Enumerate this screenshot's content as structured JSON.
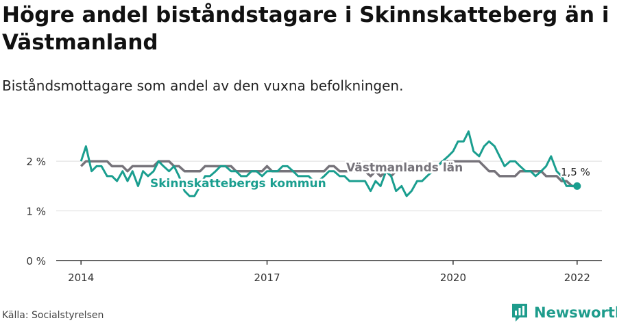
{
  "header": {
    "title": "Högre andel biståndstagare i Skinnskatteberg än i Västmanland",
    "subtitle": "Biståndsmottagare som andel av den vuxna befolkningen."
  },
  "footer": {
    "source": "Källa: Socialstyrelsen",
    "brand": "Newsworthy"
  },
  "colors": {
    "kommun": "#1a9e8f",
    "lan": "#76737a",
    "axis": "#333333",
    "grid": "#dddddd",
    "brand": "#1e9c8c"
  },
  "icons": {
    "brand_logo": "newsworthy-logo-icon"
  },
  "chart_data": {
    "type": "line",
    "title": "Högre andel biståndstagare i Skinnskatteberg än i Västmanland",
    "subtitle": "Biståndsmottagare som andel av den vuxna befolkningen.",
    "xlabel": "",
    "ylabel": "",
    "x_ticks": [
      2014,
      2017,
      2020,
      2022
    ],
    "xlim": [
      2013.6,
      2022.4
    ],
    "y_ticks": [
      0,
      1,
      2
    ],
    "y_tick_labels": [
      "0 %",
      "1 %",
      "2 %"
    ],
    "ylim": [
      0,
      2.9
    ],
    "grid": true,
    "end_label": "1,5 %",
    "series": [
      {
        "name": "Västmanlands län",
        "values": [
          [
            2014.0,
            1.9
          ],
          [
            2014.08,
            2.0
          ],
          [
            2014.17,
            2.0
          ],
          [
            2014.25,
            2.0
          ],
          [
            2014.33,
            2.0
          ],
          [
            2014.42,
            2.0
          ],
          [
            2014.5,
            1.9
          ],
          [
            2014.58,
            1.9
          ],
          [
            2014.67,
            1.9
          ],
          [
            2014.75,
            1.8
          ],
          [
            2014.83,
            1.9
          ],
          [
            2014.92,
            1.9
          ],
          [
            2015.0,
            1.9
          ],
          [
            2015.08,
            1.9
          ],
          [
            2015.17,
            1.9
          ],
          [
            2015.25,
            2.0
          ],
          [
            2015.33,
            2.0
          ],
          [
            2015.42,
            2.0
          ],
          [
            2015.5,
            1.9
          ],
          [
            2015.58,
            1.9
          ],
          [
            2015.67,
            1.8
          ],
          [
            2015.75,
            1.8
          ],
          [
            2015.83,
            1.8
          ],
          [
            2015.92,
            1.8
          ],
          [
            2016.0,
            1.9
          ],
          [
            2016.08,
            1.9
          ],
          [
            2016.17,
            1.9
          ],
          [
            2016.25,
            1.9
          ],
          [
            2016.33,
            1.9
          ],
          [
            2016.42,
            1.9
          ],
          [
            2016.5,
            1.8
          ],
          [
            2016.58,
            1.8
          ],
          [
            2016.67,
            1.8
          ],
          [
            2016.75,
            1.8
          ],
          [
            2016.83,
            1.8
          ],
          [
            2016.92,
            1.8
          ],
          [
            2017.0,
            1.9
          ],
          [
            2017.08,
            1.8
          ],
          [
            2017.17,
            1.8
          ],
          [
            2017.25,
            1.8
          ],
          [
            2017.33,
            1.8
          ],
          [
            2017.42,
            1.8
          ],
          [
            2017.5,
            1.8
          ],
          [
            2017.58,
            1.8
          ],
          [
            2017.67,
            1.8
          ],
          [
            2017.75,
            1.8
          ],
          [
            2017.83,
            1.8
          ],
          [
            2017.92,
            1.8
          ],
          [
            2018.0,
            1.9
          ],
          [
            2018.08,
            1.9
          ],
          [
            2018.17,
            1.8
          ],
          [
            2018.25,
            1.8
          ],
          [
            2018.33,
            1.8
          ],
          [
            2018.42,
            1.8
          ],
          [
            2018.5,
            1.8
          ],
          [
            2018.58,
            1.8
          ],
          [
            2018.67,
            1.7
          ],
          [
            2018.75,
            1.8
          ],
          [
            2018.83,
            1.7
          ],
          [
            2018.92,
            1.8
          ],
          [
            2019.0,
            1.7
          ],
          [
            2019.08,
            1.8
          ],
          [
            2019.17,
            1.8
          ],
          [
            2019.25,
            1.8
          ],
          [
            2019.33,
            1.8
          ],
          [
            2019.42,
            1.8
          ],
          [
            2019.5,
            1.9
          ],
          [
            2019.58,
            1.9
          ],
          [
            2019.67,
            1.9
          ],
          [
            2019.75,
            1.9
          ],
          [
            2019.83,
            2.0
          ],
          [
            2019.92,
            2.0
          ],
          [
            2020.0,
            2.0
          ],
          [
            2020.08,
            2.0
          ],
          [
            2020.17,
            2.0
          ],
          [
            2020.25,
            2.0
          ],
          [
            2020.33,
            2.0
          ],
          [
            2020.42,
            2.0
          ],
          [
            2020.5,
            1.9
          ],
          [
            2020.58,
            1.8
          ],
          [
            2020.67,
            1.8
          ],
          [
            2020.75,
            1.7
          ],
          [
            2020.83,
            1.7
          ],
          [
            2020.92,
            1.7
          ],
          [
            2021.0,
            1.7
          ],
          [
            2021.08,
            1.8
          ],
          [
            2021.17,
            1.8
          ],
          [
            2021.25,
            1.8
          ],
          [
            2021.33,
            1.8
          ],
          [
            2021.42,
            1.8
          ],
          [
            2021.5,
            1.7
          ],
          [
            2021.58,
            1.7
          ],
          [
            2021.67,
            1.7
          ],
          [
            2021.75,
            1.6
          ],
          [
            2021.83,
            1.6
          ],
          [
            2021.92,
            1.5
          ],
          [
            2022.0,
            1.5
          ]
        ]
      },
      {
        "name": "Skinnskattebergs kommun",
        "values": [
          [
            2014.0,
            2.0
          ],
          [
            2014.08,
            2.3
          ],
          [
            2014.17,
            1.8
          ],
          [
            2014.25,
            1.9
          ],
          [
            2014.33,
            1.9
          ],
          [
            2014.42,
            1.7
          ],
          [
            2014.5,
            1.7
          ],
          [
            2014.58,
            1.6
          ],
          [
            2014.67,
            1.8
          ],
          [
            2014.75,
            1.6
          ],
          [
            2014.83,
            1.8
          ],
          [
            2014.92,
            1.5
          ],
          [
            2015.0,
            1.8
          ],
          [
            2015.08,
            1.7
          ],
          [
            2015.17,
            1.8
          ],
          [
            2015.25,
            2.0
          ],
          [
            2015.33,
            1.9
          ],
          [
            2015.42,
            1.8
          ],
          [
            2015.5,
            1.9
          ],
          [
            2015.58,
            1.7
          ],
          [
            2015.67,
            1.4
          ],
          [
            2015.75,
            1.3
          ],
          [
            2015.83,
            1.3
          ],
          [
            2015.92,
            1.5
          ],
          [
            2016.0,
            1.7
          ],
          [
            2016.08,
            1.7
          ],
          [
            2016.17,
            1.8
          ],
          [
            2016.25,
            1.9
          ],
          [
            2016.33,
            1.9
          ],
          [
            2016.42,
            1.8
          ],
          [
            2016.5,
            1.8
          ],
          [
            2016.58,
            1.7
          ],
          [
            2016.67,
            1.7
          ],
          [
            2016.75,
            1.8
          ],
          [
            2016.83,
            1.8
          ],
          [
            2016.92,
            1.7
          ],
          [
            2017.0,
            1.8
          ],
          [
            2017.08,
            1.8
          ],
          [
            2017.17,
            1.8
          ],
          [
            2017.25,
            1.9
          ],
          [
            2017.33,
            1.9
          ],
          [
            2017.42,
            1.8
          ],
          [
            2017.5,
            1.7
          ],
          [
            2017.58,
            1.7
          ],
          [
            2017.67,
            1.7
          ],
          [
            2017.75,
            1.6
          ],
          [
            2017.83,
            1.6
          ],
          [
            2017.92,
            1.7
          ],
          [
            2018.0,
            1.8
          ],
          [
            2018.08,
            1.8
          ],
          [
            2018.17,
            1.7
          ],
          [
            2018.25,
            1.7
          ],
          [
            2018.33,
            1.6
          ],
          [
            2018.42,
            1.6
          ],
          [
            2018.5,
            1.6
          ],
          [
            2018.58,
            1.6
          ],
          [
            2018.67,
            1.4
          ],
          [
            2018.75,
            1.6
          ],
          [
            2018.83,
            1.5
          ],
          [
            2018.92,
            1.8
          ],
          [
            2019.0,
            1.7
          ],
          [
            2019.08,
            1.4
          ],
          [
            2019.17,
            1.5
          ],
          [
            2019.25,
            1.3
          ],
          [
            2019.33,
            1.4
          ],
          [
            2019.42,
            1.6
          ],
          [
            2019.5,
            1.6
          ],
          [
            2019.58,
            1.7
          ],
          [
            2019.67,
            1.8
          ],
          [
            2019.75,
            1.9
          ],
          [
            2019.83,
            2.0
          ],
          [
            2019.92,
            2.1
          ],
          [
            2020.0,
            2.2
          ],
          [
            2020.08,
            2.4
          ],
          [
            2020.17,
            2.4
          ],
          [
            2020.25,
            2.6
          ],
          [
            2020.33,
            2.2
          ],
          [
            2020.42,
            2.1
          ],
          [
            2020.5,
            2.3
          ],
          [
            2020.58,
            2.4
          ],
          [
            2020.67,
            2.3
          ],
          [
            2020.75,
            2.1
          ],
          [
            2020.83,
            1.9
          ],
          [
            2020.92,
            2.0
          ],
          [
            2021.0,
            2.0
          ],
          [
            2021.08,
            1.9
          ],
          [
            2021.17,
            1.8
          ],
          [
            2021.25,
            1.8
          ],
          [
            2021.33,
            1.7
          ],
          [
            2021.42,
            1.8
          ],
          [
            2021.5,
            1.9
          ],
          [
            2021.58,
            2.1
          ],
          [
            2021.67,
            1.8
          ],
          [
            2021.75,
            1.7
          ],
          [
            2021.83,
            1.5
          ],
          [
            2021.92,
            1.5
          ],
          [
            2022.0,
            1.5
          ]
        ]
      }
    ]
  }
}
